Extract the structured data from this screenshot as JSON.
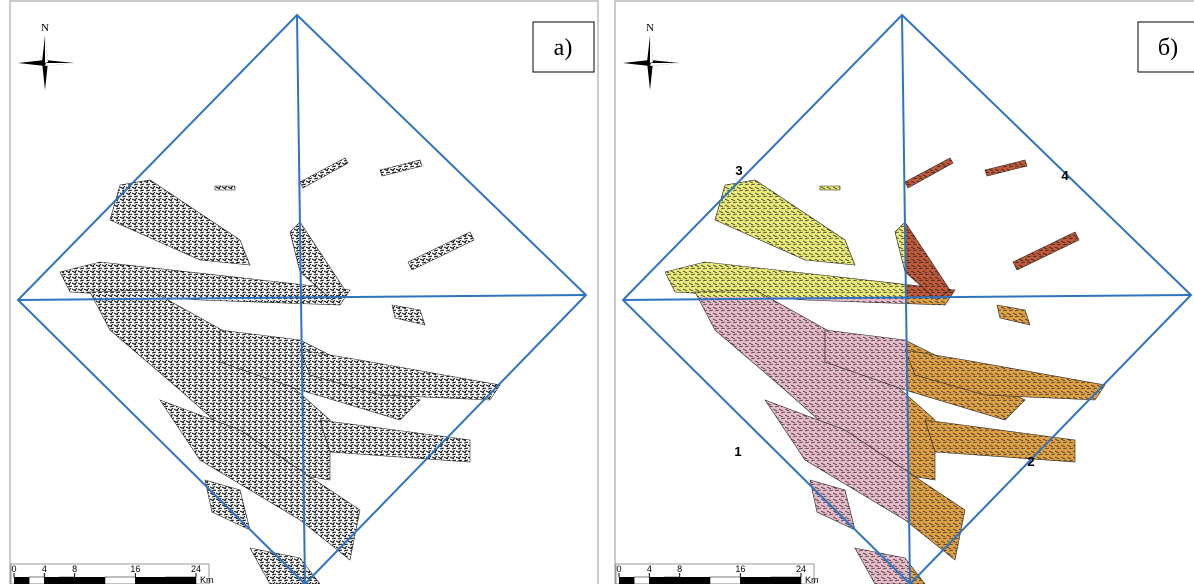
{
  "panels": [
    {
      "label": "а)",
      "north": "N",
      "scale": {
        "ticks": [
          0,
          4,
          8,
          16,
          24
        ],
        "unit": "Km"
      }
    },
    {
      "label": "б)",
      "north": "N",
      "scale": {
        "ticks": [
          0,
          4,
          8,
          16,
          24
        ],
        "unit": "Km"
      },
      "zones": [
        "1",
        "2",
        "3",
        "4"
      ]
    }
  ]
}
